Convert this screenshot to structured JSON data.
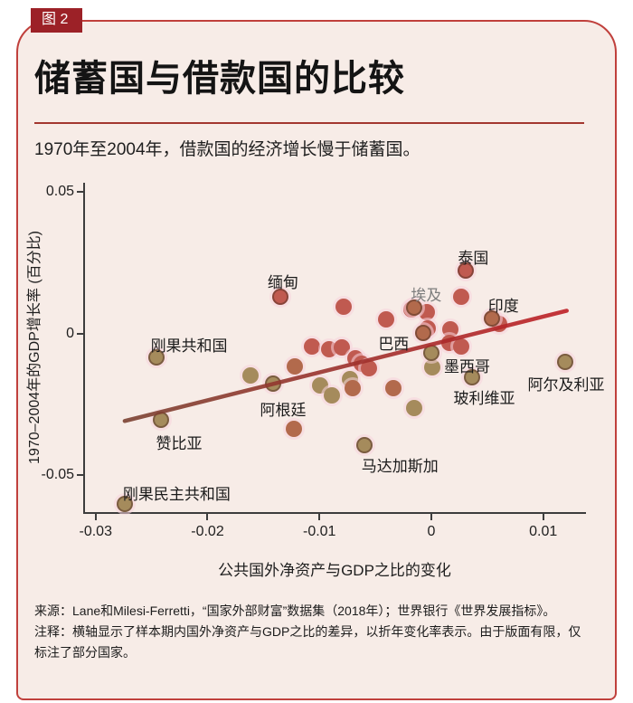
{
  "figure": {
    "badge": "图 2",
    "title": "储蓄国与借款国的比较",
    "subtitle": "1970年至2004年，借款国的经济增长慢于储蓄国。"
  },
  "footer": {
    "source": "来源：Lane和Milesi-Ferretti，“国家外部财富”数据集（2018年）；世界银行《世界发展指标》。",
    "note": "注释：横轴显示了样本期内国外净资产与GDP之比的差异，以折年变化率表示。由于版面有限，仅标注了部分国家。"
  },
  "colors": {
    "card_background": "#f7ece7",
    "card_border": "#c0403c",
    "badge_background": "#9c2127",
    "rule": "#a3372f",
    "axis": "#3d3d3d",
    "egypt_label": "#7e7e7e",
    "trend_left": "#7c4333",
    "trend_right": "#bf2127"
  },
  "chart_data": {
    "type": "scatter",
    "xlabel": "公共国外净资产与GDP之比的变化",
    "ylabel": "1970–2004年的GDP增长率 (百分比)",
    "xlim": [
      -0.03103,
      0.01374
    ],
    "ylim": [
      -0.06306,
      0.05318
    ],
    "grid": false,
    "x_ticks": [
      {
        "v": -0.03,
        "label": "-0.03"
      },
      {
        "v": -0.02,
        "label": "-0.02"
      },
      {
        "v": -0.01,
        "label": "-0.01"
      },
      {
        "v": 0,
        "label": "0"
      },
      {
        "v": 0.01,
        "label": "0.01"
      }
    ],
    "y_ticks": [
      {
        "v": 0.05,
        "label": "0.05"
      },
      {
        "v": 0,
        "label": "0"
      },
      {
        "v": -0.05,
        "label": "-0.05"
      }
    ],
    "point_colors": {
      "red": "#c05a50",
      "rust": "#b26a4c",
      "brown": "#a58b5c"
    },
    "trend_line": {
      "x1": -0.0274,
      "y1": -0.0309,
      "x2": 0.0121,
      "y2": 0.008
    },
    "points": [
      {
        "x": 0.0031,
        "y": 0.0223,
        "color": "red",
        "label": "泰国",
        "label_offset": [
          -9,
          -28
        ]
      },
      {
        "x": -0.0135,
        "y": 0.0131,
        "color": "red",
        "label": "缅甸",
        "label_offset": [
          -14,
          -30
        ]
      },
      {
        "x": -0.0015,
        "y": 0.0092,
        "color": "rust",
        "label": "埃及",
        "label_offset": [
          -4,
          -28
        ],
        "label_color": "#7e7e7e"
      },
      {
        "x": 0.0054,
        "y": 0.0054,
        "color": "rust",
        "label": "印度",
        "label_offset": [
          -4,
          -28
        ]
      },
      {
        "x": -0.0007,
        "y": 0.0003,
        "color": "rust",
        "label": "巴西",
        "label_offset": [
          -50,
          -2
        ]
      },
      {
        "x": 0.0,
        "y": -0.007,
        "color": "brown",
        "label": "墨西哥",
        "label_offset": [
          14,
          1
        ]
      },
      {
        "x": 0.012,
        "y": -0.0099,
        "color": "brown",
        "label": "阿尔及利亚",
        "label_offset": [
          -42,
          11
        ]
      },
      {
        "x": 0.0036,
        "y": -0.0156,
        "color": "brown",
        "label": "玻利维亚",
        "label_offset": [
          -20,
          9
        ]
      },
      {
        "x": -0.0141,
        "y": -0.0178,
        "color": "brown",
        "label": "阿根廷",
        "label_offset": [
          -15,
          15
        ]
      },
      {
        "x": -0.0246,
        "y": -0.0083,
        "color": "brown",
        "label": "刚果共和国",
        "label_offset": [
          -6,
          -27
        ]
      },
      {
        "x": -0.0242,
        "y": -0.0306,
        "color": "brown",
        "label": "赞比亚",
        "label_offset": [
          -5,
          12
        ]
      },
      {
        "x": -0.006,
        "y": -0.0395,
        "color": "brown",
        "label": "马达加斯加",
        "label_offset": [
          -3,
          9
        ]
      },
      {
        "x": -0.0274,
        "y": -0.0602,
        "color": "brown",
        "label": "刚果民主共和国",
        "label_offset": [
          -2,
          -25
        ]
      },
      {
        "x": -0.0078,
        "y": 0.0095,
        "color": "red"
      },
      {
        "x": -0.0107,
        "y": -0.0045,
        "color": "red"
      },
      {
        "x": -0.0091,
        "y": -0.0057,
        "color": "red"
      },
      {
        "x": -0.008,
        "y": -0.0048,
        "color": "red"
      },
      {
        "x": -0.0122,
        "y": -0.0115,
        "color": "rust"
      },
      {
        "x": -0.0162,
        "y": -0.0147,
        "color": "brown"
      },
      {
        "x": -0.004,
        "y": 0.0048,
        "color": "red"
      },
      {
        "x": -0.0004,
        "y": 0.0076,
        "color": "red"
      },
      {
        "x": -0.0018,
        "y": 0.0086,
        "color": "red"
      },
      {
        "x": 0.0027,
        "y": 0.0131,
        "color": "red"
      },
      {
        "x": 0.0061,
        "y": 0.0035,
        "color": "red"
      },
      {
        "x": 0.0017,
        "y": 0.0013,
        "color": "red"
      },
      {
        "x": 0.0016,
        "y": -0.0032,
        "color": "red"
      },
      {
        "x": 0.0027,
        "y": -0.0045,
        "color": "red"
      },
      {
        "x": -0.0003,
        "y": 0.0019,
        "color": "red"
      },
      {
        "x": -0.0068,
        "y": -0.0089,
        "color": "red"
      },
      {
        "x": -0.0062,
        "y": -0.0108,
        "color": "red"
      },
      {
        "x": -0.0056,
        "y": -0.0124,
        "color": "red"
      },
      {
        "x": -0.0073,
        "y": -0.0162,
        "color": "brown"
      },
      {
        "x": -0.007,
        "y": -0.0194,
        "color": "rust"
      },
      {
        "x": -0.0099,
        "y": -0.0185,
        "color": "brown"
      },
      {
        "x": -0.0089,
        "y": -0.022,
        "color": "brown"
      },
      {
        "x": -0.0034,
        "y": -0.0194,
        "color": "rust"
      },
      {
        "x": -0.0015,
        "y": -0.0264,
        "color": "brown"
      },
      {
        "x": -0.0123,
        "y": -0.0338,
        "color": "rust"
      },
      {
        "x": 0.0001,
        "y": -0.0121,
        "color": "brown"
      }
    ]
  }
}
